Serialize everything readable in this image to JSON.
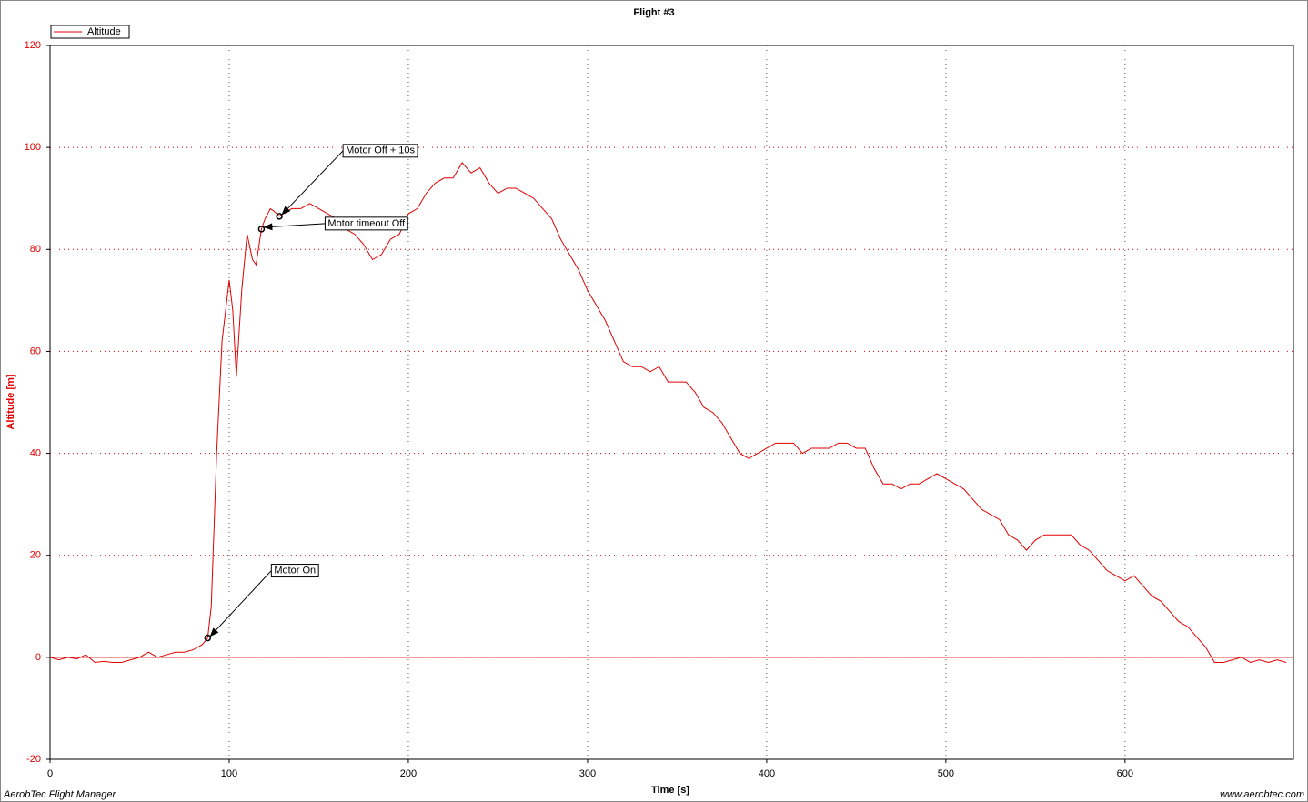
{
  "chart_data": {
    "type": "line",
    "title": "Flight #3",
    "x_label": "Time [s]",
    "y_label": "Altitude [m]",
    "footer_left": "AerobTec Flight Manager",
    "footer_right": "www.aerobtec.com",
    "xlim": [
      0,
      694
    ],
    "ylim": [
      -20,
      120
    ],
    "xticks": [
      0,
      100,
      200,
      300,
      400,
      500,
      600
    ],
    "yticks": [
      -20,
      0,
      20,
      40,
      60,
      80,
      100,
      120
    ],
    "grid": true,
    "legend": "top-left",
    "x": [
      0,
      5,
      10,
      15,
      20,
      25,
      30,
      35,
      40,
      45,
      50,
      55,
      60,
      65,
      70,
      75,
      80,
      85,
      88,
      90,
      93,
      96,
      100,
      102,
      104,
      107,
      110,
      113,
      115,
      118,
      120,
      123,
      125,
      128,
      130,
      135,
      140,
      145,
      150,
      155,
      160,
      165,
      170,
      175,
      180,
      185,
      190,
      195,
      200,
      205,
      210,
      215,
      220,
      225,
      230,
      235,
      240,
      245,
      250,
      255,
      260,
      265,
      270,
      275,
      280,
      285,
      290,
      295,
      300,
      305,
      310,
      315,
      320,
      325,
      330,
      335,
      340,
      345,
      350,
      355,
      360,
      365,
      370,
      375,
      380,
      385,
      390,
      395,
      400,
      405,
      410,
      415,
      420,
      425,
      430,
      435,
      440,
      445,
      450,
      455,
      460,
      465,
      470,
      475,
      480,
      485,
      490,
      495,
      500,
      505,
      510,
      515,
      520,
      525,
      530,
      535,
      540,
      545,
      550,
      555,
      560,
      565,
      570,
      575,
      580,
      585,
      590,
      595,
      600,
      605,
      610,
      615,
      620,
      625,
      630,
      635,
      640,
      645,
      650,
      655,
      660,
      665,
      670,
      675,
      680,
      685,
      690
    ],
    "series": [
      {
        "name": "Altitude",
        "color": "#e00000",
        "values": [
          0,
          -0.5,
          0,
          -0.3,
          0.5,
          -1,
          -0.8,
          -1,
          -1,
          -0.5,
          0,
          1,
          0,
          0.5,
          1,
          1,
          1.5,
          2.5,
          3.8,
          10,
          40,
          62,
          74,
          68,
          55,
          72,
          83,
          78,
          77,
          84,
          86,
          88,
          87.5,
          86.5,
          87,
          88,
          88,
          89,
          88,
          87,
          86,
          84,
          83,
          81,
          78,
          79,
          82,
          83,
          87,
          88,
          91,
          93,
          94,
          94,
          97,
          95,
          96,
          93,
          91,
          92,
          92,
          91,
          90,
          88,
          86,
          82,
          79,
          76,
          72,
          69,
          66,
          62,
          58,
          57,
          57,
          56,
          57,
          54,
          54,
          54,
          52,
          49,
          48,
          46,
          43,
          40,
          39,
          40,
          41,
          42,
          42,
          42,
          40,
          41,
          41,
          41,
          42,
          42,
          41,
          41,
          37,
          34,
          34,
          33,
          34,
          34,
          35,
          36,
          35,
          34,
          33,
          31,
          29,
          28,
          27,
          24,
          23,
          21,
          23,
          24,
          24,
          24,
          24,
          22,
          21,
          19,
          17,
          16,
          15,
          16,
          14,
          12,
          11,
          9,
          7,
          6,
          4,
          2,
          -1,
          -1,
          -0.5,
          0,
          -1,
          -0.5,
          -1,
          -0.5,
          -1
        ]
      }
    ],
    "annotations": [
      {
        "text": "Motor On",
        "x": 88,
        "y": 3.8
      },
      {
        "text": "Motor timeout Off",
        "x": 118,
        "y": 84
      },
      {
        "text": "Motor Off + 10s",
        "x": 128,
        "y": 86.5
      }
    ]
  }
}
